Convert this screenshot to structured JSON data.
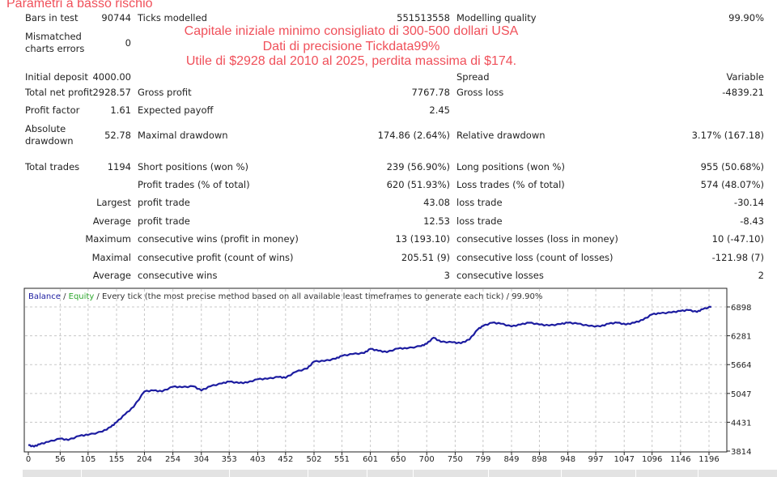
{
  "overlay": {
    "title": "Parametri a basso rischio",
    "line1": "Capitale iniziale minimo consigliato di 300-500 dollari USA",
    "line2": "Dati di precisione Tickdata99%",
    "line3": "Utile di $2928 dal 2010 al 2025, perdita massima di $174."
  },
  "report": {
    "bars_label": "Bars in test",
    "bars": "90744",
    "ticks_label": "Ticks modelled",
    "ticks": "551513558",
    "quality_label": "Modelling quality",
    "quality": "99.90%",
    "mismatch_label1": "Mismatched",
    "mismatch_label2": "charts errors",
    "mismatch": "0",
    "deposit_label": "Initial deposit",
    "deposit": "4000.00",
    "spread_label": "Spread",
    "spread": "Variable",
    "net_label": "Total net profit",
    "net": "2928.57",
    "gp_label": "Gross profit",
    "gp": "7767.78",
    "gl_label": "Gross loss",
    "gl": "-4839.21",
    "pf_label": "Profit factor",
    "pf": "1.61",
    "ep_label": "Expected payoff",
    "ep": "2.45",
    "ad_label1": "Absolute",
    "ad_label2": "drawdown",
    "ad": "52.78",
    "md_label": "Maximal drawdown",
    "md": "174.86 (2.64%)",
    "rd_label": "Relative drawdown",
    "rd": "3.17% (167.18)",
    "tt_label": "Total trades",
    "tt": "1194",
    "sp_label": "Short positions (won %)",
    "sp": "239 (56.90%)",
    "lp_label": "Long positions (won %)",
    "lp": "955 (50.68%)",
    "pt_label": "Profit trades (% of total)",
    "pt": "620 (51.93%)",
    "lt_label": "Loss trades (% of total)",
    "lt": "574 (48.07%)",
    "largest": "Largest",
    "average": "Average",
    "maximum": "Maximum",
    "maximal": "Maximal",
    "average2": "Average",
    "lpt_label": "profit trade",
    "lpt": "43.08",
    "llt_label": "loss trade",
    "llt": "-30.14",
    "apt_label": "profit trade",
    "apt": "12.53",
    "alt_label": "loss trade",
    "alt": "-8.43",
    "mcw_label": "consecutive wins (profit in money)",
    "mcw": "13 (193.10)",
    "mcl_label": "consecutive losses (loss in money)",
    "mcl": "10 (-47.10)",
    "mcp_label": "consecutive profit (count of wins)",
    "mcp": "205.51 (9)",
    "mclc_label": "consecutive loss (count of losses)",
    "mclc": "-121.98 (7)",
    "acw_label": "consecutive wins",
    "acw": "3",
    "acl_label": "consecutive losses",
    "acl": "2"
  },
  "chart_data": {
    "type": "line",
    "legend": {
      "balance": "Balance",
      "sep1": " / ",
      "equity": "Equity",
      "rest": " / Every tick (the most precise method based on all available least timeframes to generate each tick) / 99.90%"
    },
    "colors": {
      "balance": "#1c1ca0",
      "equity": "#2ea82e"
    },
    "x_ticks": [
      0,
      56,
      105,
      155,
      204,
      254,
      304,
      353,
      403,
      452,
      502,
      551,
      601,
      650,
      700,
      750,
      799,
      849,
      898,
      948,
      997,
      1047,
      1096,
      1146,
      1196
    ],
    "y_ticks": [
      3814,
      4431,
      5047,
      5664,
      6281,
      6898
    ],
    "xlim": [
      0,
      1210
    ],
    "ylim": [
      3814,
      6960
    ],
    "series": [
      {
        "name": "Balance",
        "x": [
          0,
          10,
          20,
          35,
          56,
          70,
          90,
          105,
          130,
          145,
          155,
          170,
          185,
          204,
          220,
          235,
          254,
          270,
          290,
          304,
          320,
          340,
          353,
          370,
          385,
          403,
          420,
          440,
          452,
          470,
          490,
          502,
          520,
          540,
          551,
          570,
          590,
          601,
          615,
          630,
          650,
          665,
          690,
          700,
          712,
          725,
          745,
          760,
          775,
          790,
          799,
          815,
          830,
          849,
          865,
          880,
          898,
          915,
          935,
          948,
          965,
          985,
          1005,
          1020,
          1035,
          1050,
          1065,
          1080,
          1096,
          1110,
          1130,
          1146,
          1160,
          1175,
          1185,
          1200
        ],
        "y": [
          3940,
          3910,
          3960,
          4010,
          4080,
          4050,
          4140,
          4160,
          4230,
          4330,
          4430,
          4600,
          4760,
          5090,
          5110,
          5090,
          5190,
          5180,
          5200,
          5110,
          5200,
          5260,
          5300,
          5270,
          5280,
          5350,
          5360,
          5400,
          5380,
          5510,
          5580,
          5730,
          5740,
          5790,
          5850,
          5890,
          5910,
          6000,
          5960,
          5930,
          6010,
          6010,
          6060,
          6110,
          6240,
          6150,
          6140,
          6120,
          6200,
          6420,
          6490,
          6560,
          6540,
          6480,
          6520,
          6560,
          6520,
          6500,
          6530,
          6560,
          6540,
          6490,
          6480,
          6540,
          6560,
          6520,
          6560,
          6620,
          6740,
          6760,
          6780,
          6810,
          6830,
          6790,
          6850,
          6900
        ]
      }
    ]
  }
}
